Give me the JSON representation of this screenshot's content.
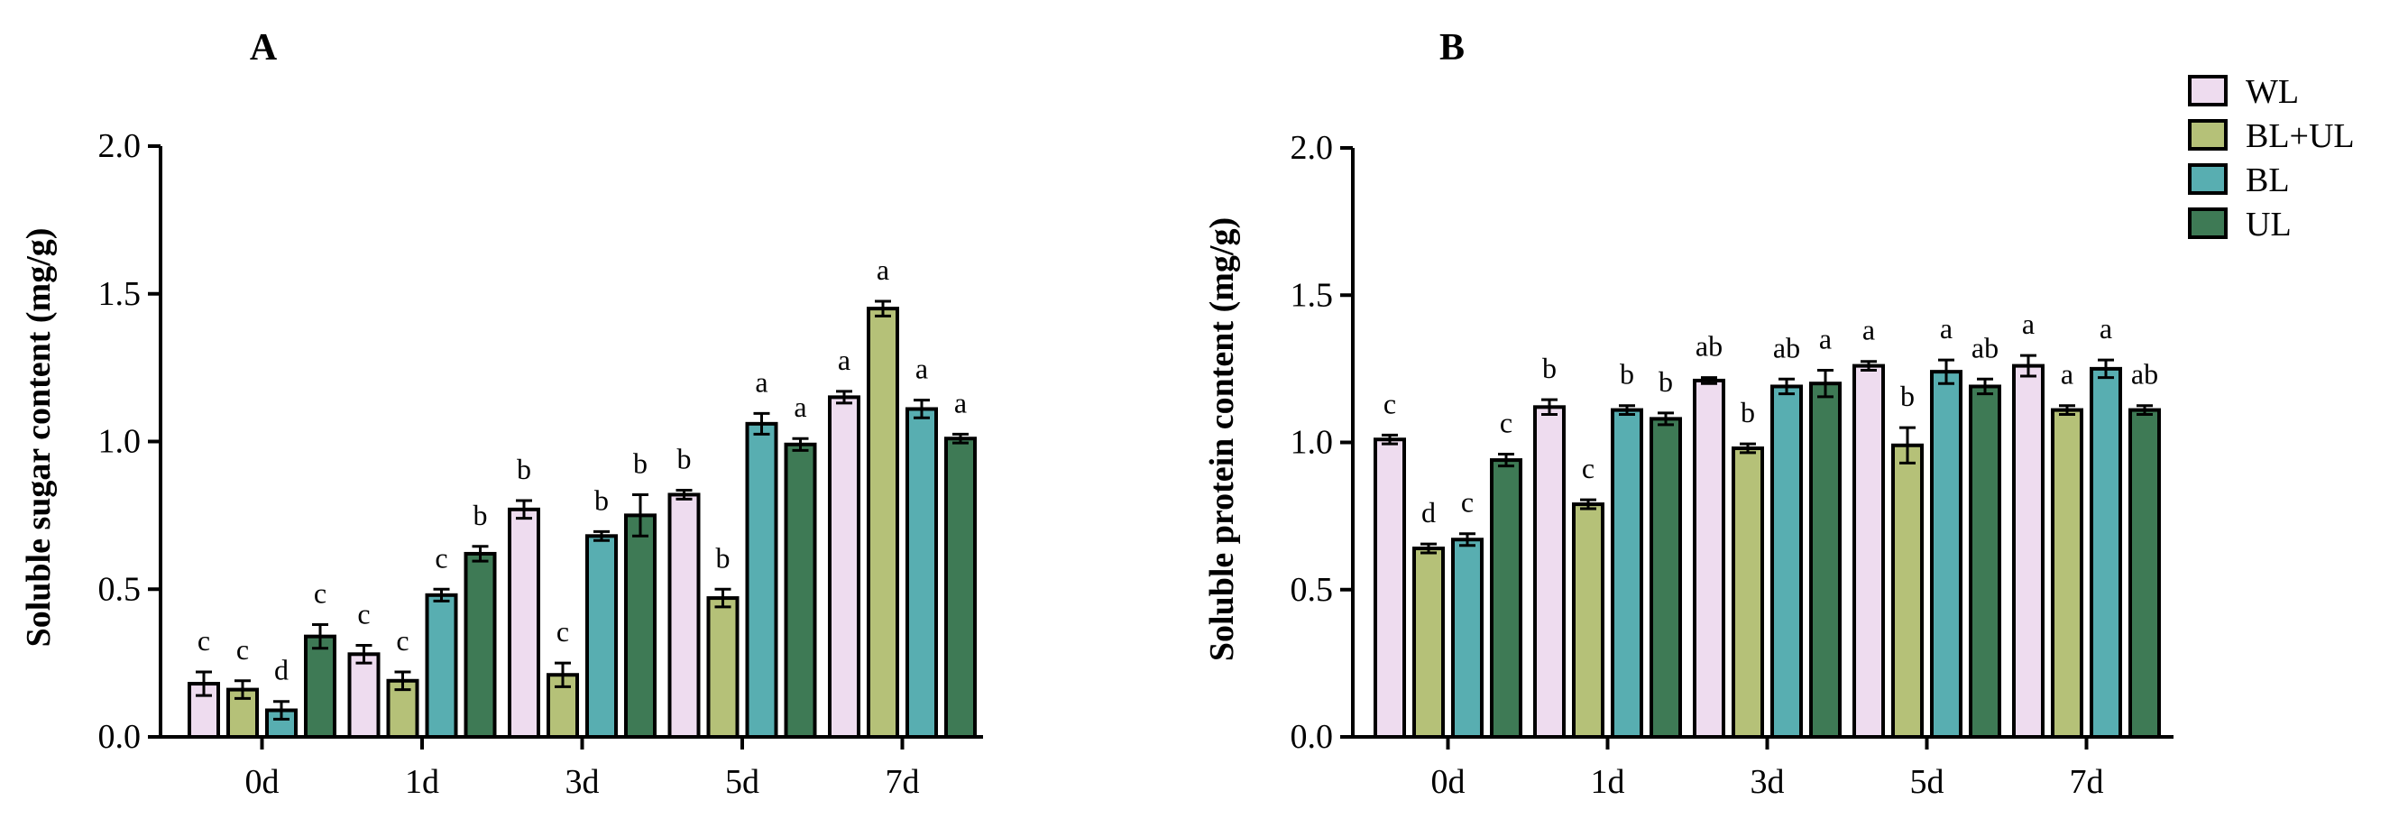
{
  "legend": [
    {
      "name": "WL",
      "color": "#eedcef"
    },
    {
      "name": "BL+UL",
      "color": "#b5c178"
    },
    {
      "name": "BL",
      "color": "#58aeb1"
    },
    {
      "name": "UL",
      "color": "#3e7a55"
    }
  ],
  "chart_data": [
    {
      "type": "bar",
      "panel": "A",
      "ylabel": "Soluble sugar content (mg/g)",
      "xlabel": "",
      "categories": [
        "0d",
        "1d",
        "3d",
        "5d",
        "7d"
      ],
      "ylim": [
        0,
        2.0
      ],
      "yticks": [
        "0.0",
        "0.5",
        "1.0",
        "1.5",
        "2.0"
      ],
      "series": [
        {
          "name": "WL",
          "values": [
            0.18,
            0.28,
            0.77,
            0.82,
            1.15
          ],
          "errors": [
            0.04,
            0.03,
            0.03,
            0.015,
            0.02
          ],
          "letters": [
            "c",
            "c",
            "b",
            "b",
            "a"
          ]
        },
        {
          "name": "BL+UL",
          "values": [
            0.16,
            0.19,
            0.21,
            0.47,
            1.45
          ],
          "errors": [
            0.03,
            0.03,
            0.04,
            0.03,
            0.025
          ],
          "letters": [
            "c",
            "c",
            "c",
            "b",
            "a"
          ]
        },
        {
          "name": "BL",
          "values": [
            0.09,
            0.48,
            0.68,
            1.06,
            1.11
          ],
          "errors": [
            0.03,
            0.02,
            0.015,
            0.035,
            0.03
          ],
          "letters": [
            "d",
            "c",
            "b",
            "a",
            "a"
          ]
        },
        {
          "name": "UL",
          "values": [
            0.34,
            0.62,
            0.75,
            0.99,
            1.01
          ],
          "errors": [
            0.04,
            0.025,
            0.07,
            0.02,
            0.015
          ],
          "letters": [
            "c",
            "b",
            "b",
            "a",
            "a"
          ]
        }
      ]
    },
    {
      "type": "bar",
      "panel": "B",
      "ylabel": "Soluble protein content (mg/g)",
      "xlabel": "",
      "categories": [
        "0d",
        "1d",
        "3d",
        "5d",
        "7d"
      ],
      "ylim": [
        0,
        2.0
      ],
      "yticks": [
        "0.0",
        "0.5",
        "1.0",
        "1.5",
        "2.0"
      ],
      "series": [
        {
          "name": "WL",
          "values": [
            1.01,
            1.12,
            1.21,
            1.26,
            1.26
          ],
          "errors": [
            0.015,
            0.025,
            0.01,
            0.015,
            0.035
          ],
          "letters": [
            "c",
            "b",
            "ab",
            "a",
            "a"
          ]
        },
        {
          "name": "BL+UL",
          "values": [
            0.64,
            0.79,
            0.98,
            0.99,
            1.11
          ],
          "errors": [
            0.015,
            0.015,
            0.015,
            0.06,
            0.015
          ],
          "letters": [
            "d",
            "c",
            "b",
            "b",
            "a"
          ]
        },
        {
          "name": "BL",
          "values": [
            0.67,
            1.11,
            1.19,
            1.24,
            1.25
          ],
          "errors": [
            0.02,
            0.015,
            0.025,
            0.04,
            0.03
          ],
          "letters": [
            "c",
            "b",
            "ab",
            "a",
            "a"
          ]
        },
        {
          "name": "UL",
          "values": [
            0.94,
            1.08,
            1.2,
            1.19,
            1.11
          ],
          "errors": [
            0.02,
            0.02,
            0.045,
            0.025,
            0.015
          ],
          "letters": [
            "c",
            "b",
            "a",
            "ab",
            "ab"
          ]
        }
      ]
    }
  ]
}
